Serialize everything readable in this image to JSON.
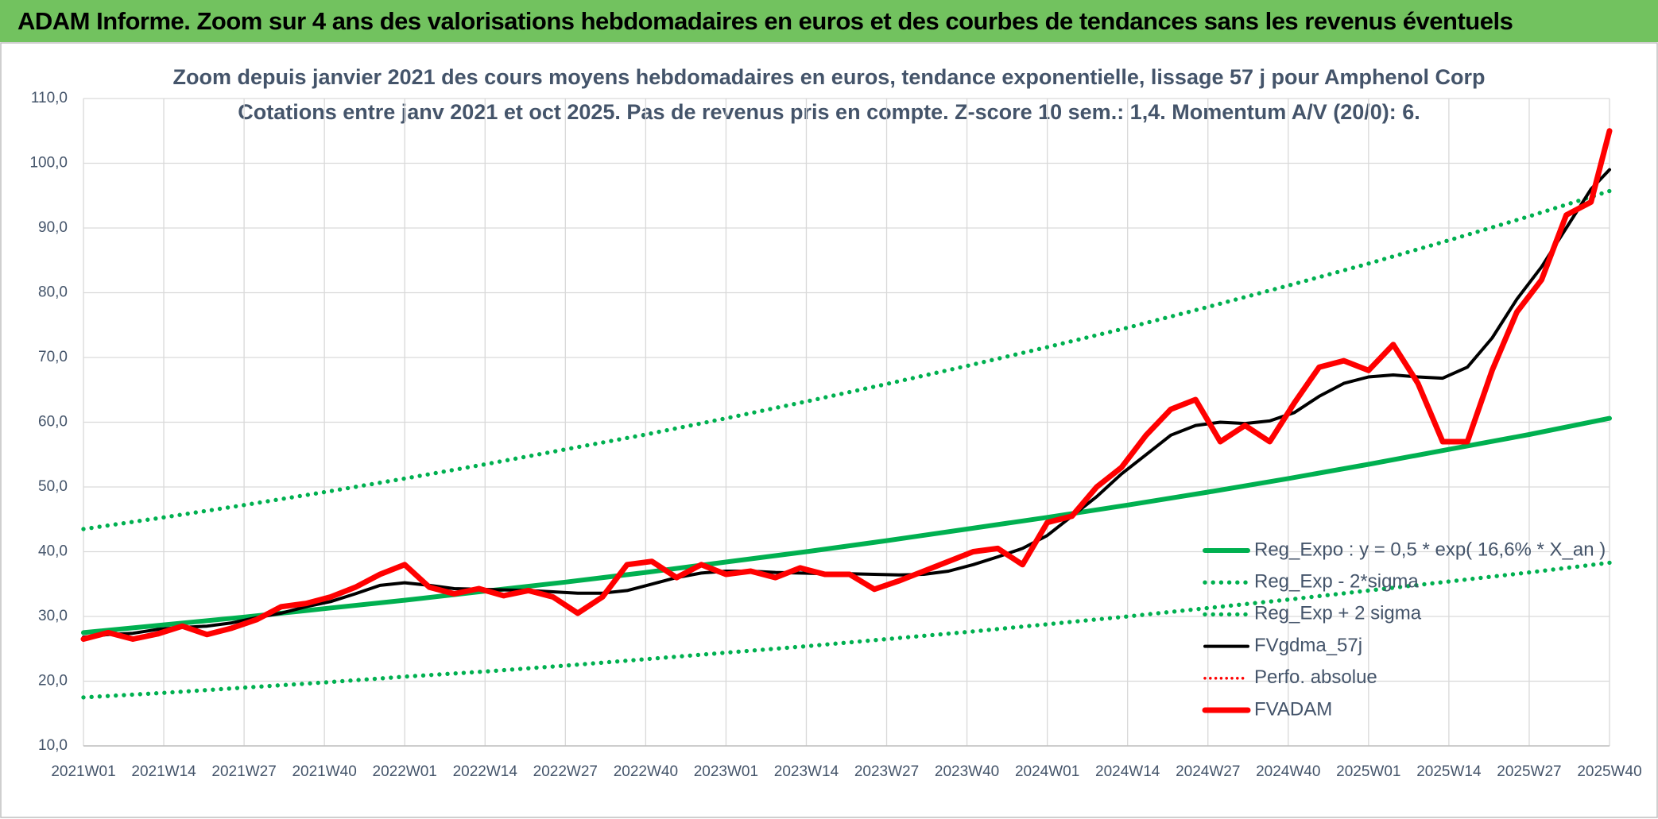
{
  "header": {
    "title": "ADAM Informe. Zoom sur 4 ans des valorisations hebdomadaires en euros et des courbes de tendances sans les revenus éventuels"
  },
  "chart_data": {
    "type": "line",
    "title": "Zoom depuis janvier 2021 des cours moyens hebdomadaires en euros, tendance exponentielle, lissage 57 j pour Amphenol Corp",
    "subtitle": "Cotations entre janv 2021 et oct 2025. Pas de revenus pris en compte. Z-score 10 sem.: 1,4. Momentum A/V (20/0): 6.",
    "xlim": [
      0,
      247
    ],
    "xticks": [
      {
        "value": 0,
        "label": "2021W01"
      },
      {
        "value": 13,
        "label": "2021W14"
      },
      {
        "value": 26,
        "label": "2021W27"
      },
      {
        "value": 39,
        "label": "2021W40"
      },
      {
        "value": 52,
        "label": "2022W01"
      },
      {
        "value": 65,
        "label": "2022W14"
      },
      {
        "value": 78,
        "label": "2022W27"
      },
      {
        "value": 91,
        "label": "2022W40"
      },
      {
        "value": 104,
        "label": "2023W01"
      },
      {
        "value": 117,
        "label": "2023W14"
      },
      {
        "value": 130,
        "label": "2023W27"
      },
      {
        "value": 143,
        "label": "2023W40"
      },
      {
        "value": 156,
        "label": "2024W01"
      },
      {
        "value": 169,
        "label": "2024W14"
      },
      {
        "value": 182,
        "label": "2024W27"
      },
      {
        "value": 195,
        "label": "2024W40"
      },
      {
        "value": 208,
        "label": "2025W01"
      },
      {
        "value": 221,
        "label": "2025W14"
      },
      {
        "value": 234,
        "label": "2025W27"
      },
      {
        "value": 247,
        "label": "2025W40"
      }
    ],
    "ylim": [
      10,
      110
    ],
    "yticks": [
      {
        "value": 10,
        "label": "10,0"
      },
      {
        "value": 20,
        "label": "20,0"
      },
      {
        "value": 30,
        "label": "30,0"
      },
      {
        "value": 40,
        "label": "40,0"
      },
      {
        "value": 50,
        "label": "50,0"
      },
      {
        "value": 60,
        "label": "60,0"
      },
      {
        "value": 70,
        "label": "70,0"
      },
      {
        "value": 80,
        "label": "80,0"
      },
      {
        "value": 90,
        "label": "90,0"
      },
      {
        "value": 100,
        "label": "100,0"
      },
      {
        "value": 110,
        "label": "110,0"
      }
    ],
    "grid": true,
    "legend": "right",
    "series": [
      {
        "name": "Reg_Expo : y = 0,5 * exp( 16,6% *  X_an )",
        "color": "#00b050",
        "style": "solid",
        "weight": "thick",
        "x": [
          0,
          13,
          26,
          39,
          52,
          65,
          78,
          91,
          104,
          117,
          130,
          143,
          156,
          169,
          182,
          195,
          208,
          221,
          234,
          247
        ],
        "values": [
          27.5,
          28.7,
          29.9,
          31.2,
          32.5,
          33.9,
          35.3,
          36.8,
          38.4,
          40.0,
          41.7,
          43.5,
          45.3,
          47.2,
          49.2,
          51.3,
          53.5,
          55.8,
          58.1,
          60.6
        ]
      },
      {
        "name": "Reg_Exp - 2*sigma",
        "color": "#00b050",
        "style": "dotted",
        "weight": "thick",
        "x": [
          0,
          13,
          26,
          39,
          52,
          65,
          78,
          91,
          104,
          117,
          130,
          143,
          156,
          169,
          182,
          195,
          208,
          221,
          234,
          247
        ],
        "values": [
          17.5,
          18.2,
          19.0,
          19.8,
          20.7,
          21.5,
          22.4,
          23.4,
          24.4,
          25.4,
          26.5,
          27.6,
          28.8,
          30.0,
          31.3,
          32.6,
          34.0,
          35.4,
          36.8,
          38.3
        ]
      },
      {
        "name": "Reg_Exp + 2 sigma",
        "color": "#00b050",
        "style": "dotted",
        "weight": "thick",
        "x": [
          0,
          13,
          26,
          39,
          52,
          65,
          78,
          91,
          104,
          117,
          130,
          143,
          156,
          169,
          182,
          195,
          208,
          221,
          234,
          247
        ],
        "values": [
          43.5,
          45.3,
          47.2,
          49.2,
          51.3,
          53.5,
          55.8,
          58.1,
          60.6,
          63.2,
          65.9,
          68.7,
          71.6,
          74.6,
          77.8,
          81.1,
          84.5,
          88.1,
          91.8,
          95.7
        ]
      },
      {
        "name": "FVgdma_57j",
        "color": "#000000",
        "style": "solid",
        "weight": "thin",
        "x": [
          0,
          4,
          8,
          12,
          16,
          20,
          24,
          28,
          32,
          36,
          40,
          44,
          48,
          52,
          56,
          60,
          64,
          68,
          72,
          76,
          80,
          84,
          88,
          92,
          96,
          100,
          104,
          108,
          112,
          116,
          120,
          124,
          128,
          132,
          136,
          140,
          144,
          148,
          152,
          156,
          160,
          164,
          168,
          172,
          176,
          180,
          184,
          188,
          192,
          196,
          200,
          204,
          208,
          212,
          216,
          220,
          224,
          228,
          232,
          236,
          240,
          244,
          247
        ],
        "values": [
          26.8,
          27.2,
          27.4,
          28.0,
          28.3,
          28.5,
          29.0,
          29.8,
          30.5,
          31.5,
          32.3,
          33.5,
          34.8,
          35.2,
          34.8,
          34.3,
          34.2,
          34.1,
          34.0,
          33.8,
          33.6,
          33.6,
          34.0,
          35.0,
          36.0,
          36.7,
          37.0,
          37.0,
          36.8,
          36.7,
          36.6,
          36.6,
          36.5,
          36.4,
          36.5,
          37.0,
          38.0,
          39.2,
          40.5,
          42.5,
          45.5,
          48.5,
          52.0,
          55.0,
          58.0,
          59.5,
          60.0,
          59.8,
          60.2,
          61.5,
          64.0,
          66.0,
          67.0,
          67.3,
          67.0,
          66.8,
          68.5,
          73.0,
          79.0,
          84.0,
          90.0,
          96.0,
          99.0
        ]
      },
      {
        "name": "Perfo. absolue",
        "color": "#ff0000",
        "style": "dotted",
        "weight": "thin",
        "x": [],
        "values": []
      },
      {
        "name": "FVADAM",
        "color": "#ff0000",
        "style": "solid",
        "weight": "thick",
        "x": [
          0,
          4,
          8,
          12,
          16,
          20,
          24,
          28,
          32,
          36,
          40,
          44,
          48,
          52,
          56,
          60,
          64,
          68,
          72,
          76,
          80,
          84,
          88,
          92,
          96,
          100,
          104,
          108,
          112,
          116,
          120,
          124,
          128,
          132,
          136,
          140,
          144,
          148,
          152,
          156,
          160,
          164,
          168,
          172,
          176,
          180,
          184,
          188,
          192,
          196,
          200,
          204,
          208,
          212,
          216,
          220,
          224,
          228,
          232,
          236,
          240,
          244,
          247
        ],
        "values": [
          26.5,
          27.5,
          26.5,
          27.3,
          28.5,
          27.2,
          28.2,
          29.5,
          31.5,
          32.0,
          33.0,
          34.5,
          36.5,
          38.0,
          34.5,
          33.5,
          34.3,
          33.2,
          34.0,
          33.0,
          30.5,
          33.0,
          38.0,
          38.5,
          36.0,
          38.0,
          36.5,
          37.0,
          36.0,
          37.5,
          36.5,
          36.5,
          34.2,
          35.5,
          37.0,
          38.5,
          40.0,
          40.5,
          38.0,
          44.5,
          45.5,
          50.0,
          53.0,
          58.0,
          62.0,
          63.5,
          57.0,
          59.5,
          57.0,
          63.0,
          68.5,
          69.5,
          68.0,
          72.0,
          66.0,
          57.0,
          57.0,
          68.0,
          77.0,
          82.0,
          92.0,
          94.0,
          105.0
        ]
      }
    ]
  }
}
